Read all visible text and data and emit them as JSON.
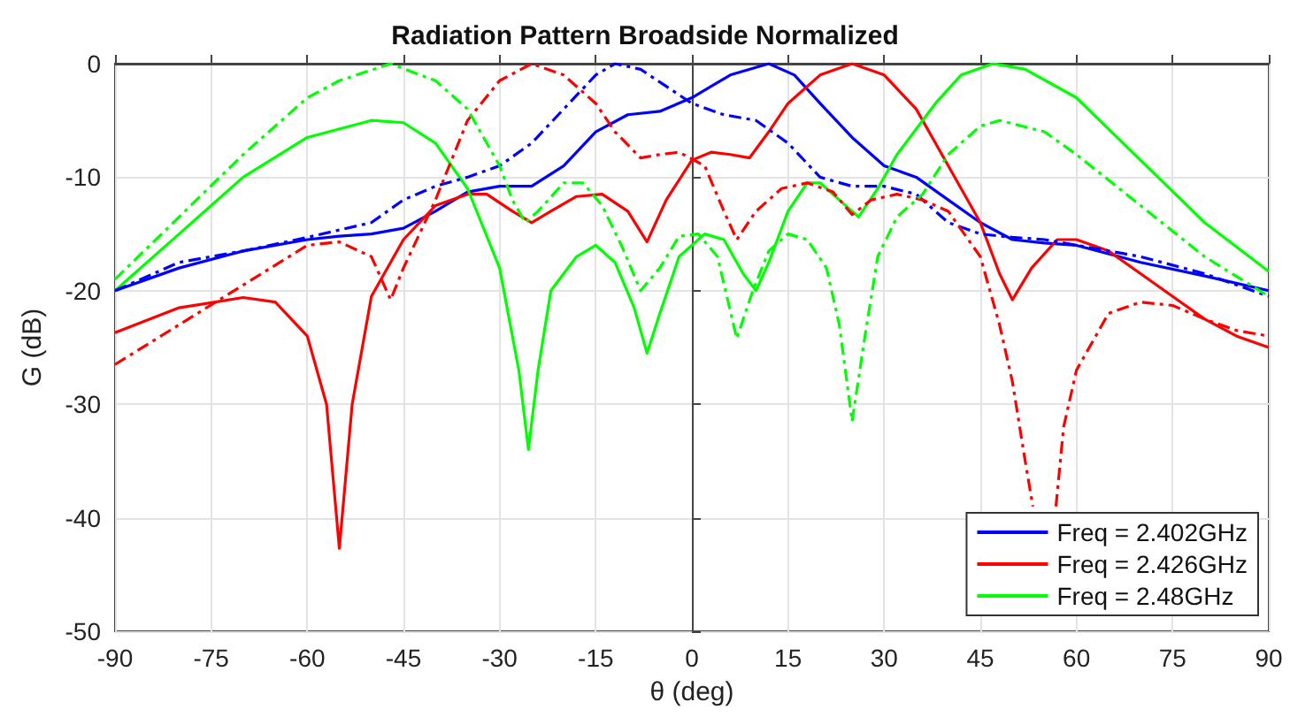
{
  "chart_data": {
    "type": "line",
    "title": "Radiation Pattern Broadside Normalized",
    "xlabel": "θ (deg)",
    "ylabel": "G (dB)",
    "xlim": [
      -90,
      90
    ],
    "xticks": [
      -90,
      -75,
      -60,
      -45,
      -30,
      -15,
      0,
      15,
      30,
      45,
      60,
      75,
      90
    ],
    "ylim": [
      -50,
      0
    ],
    "yticks": [
      -50,
      -40,
      -30,
      -20,
      -10,
      0
    ],
    "grid": true,
    "legend": "bottom right",
    "marker": "none",
    "series": [
      {
        "name": "Freq = 2.402GHz",
        "color": "#0000ff",
        "line_style": "solid",
        "x": [
          -90,
          -80,
          -70,
          -60,
          -55,
          -50,
          -45,
          -40,
          -35,
          -30,
          -25,
          -20,
          -15,
          -10,
          -5,
          0,
          3,
          6,
          12,
          16,
          20,
          25,
          30,
          35,
          40,
          45,
          50,
          55,
          60,
          70,
          80,
          90
        ],
        "values": [
          -20,
          -18,
          -16.5,
          -15.5,
          -15.2,
          -15,
          -14.5,
          -13,
          -11.3,
          -10.8,
          -10.8,
          -9,
          -6,
          -4.5,
          -4.2,
          -3,
          -2,
          -1,
          0,
          -1,
          -3.5,
          -6.5,
          -9,
          -10,
          -12,
          -14,
          -15.5,
          -15.8,
          -16,
          -17.5,
          -18.7,
          -20
        ]
      },
      {
        "name": "Freq = 2.426GHz",
        "color": "#ff0000",
        "line_style": "solid",
        "x": [
          -90,
          -80,
          -70,
          -65,
          -60,
          -57,
          -55,
          -53,
          -50,
          -45,
          -40,
          -35,
          -32,
          -28,
          -25,
          -22,
          -18,
          -14,
          -10,
          -7,
          -4,
          0,
          3,
          6,
          9,
          12,
          15,
          20,
          25,
          30,
          35,
          40,
          45,
          48,
          50,
          53,
          57,
          60,
          65,
          70,
          75,
          80,
          85,
          90
        ],
        "values": [
          -23.7,
          -21.5,
          -20.6,
          -21,
          -24,
          -30,
          -42.7,
          -30,
          -20.5,
          -15.5,
          -12.5,
          -11.5,
          -11.5,
          -13,
          -14,
          -13,
          -11.7,
          -11.5,
          -13,
          -15.7,
          -12,
          -8.5,
          -7.8,
          -8,
          -8.3,
          -6,
          -3.5,
          -1,
          0,
          -1,
          -4,
          -9,
          -14,
          -18.5,
          -20.8,
          -18,
          -15.5,
          -15.5,
          -16.5,
          -18.5,
          -20.5,
          -22.5,
          -24,
          -25
        ]
      },
      {
        "name": "Freq = 2.48GHz",
        "color": "#00ff00",
        "line_style": "solid",
        "x": [
          -90,
          -80,
          -70,
          -60,
          -50,
          -45,
          -40,
          -35,
          -30,
          -27,
          -25.5,
          -24,
          -22,
          -18,
          -15,
          -12,
          -9,
          -7,
          -5,
          -2,
          2,
          5,
          8,
          10,
          12,
          15,
          18,
          20,
          23,
          26,
          29,
          32,
          38,
          42,
          47,
          52,
          60,
          70,
          80,
          90
        ],
        "values": [
          -20,
          -15,
          -10,
          -6.5,
          -5,
          -5.2,
          -7,
          -11,
          -18,
          -27,
          -34,
          -27,
          -20,
          -17,
          -16,
          -17.5,
          -21.5,
          -25.5,
          -22,
          -17,
          -15,
          -15.5,
          -18.5,
          -20,
          -17.5,
          -13,
          -10.5,
          -10.5,
          -12,
          -13.5,
          -11,
          -8,
          -3.5,
          -1,
          0,
          -0.5,
          -3,
          -8.5,
          -14,
          -18.3
        ]
      },
      {
        "color": "#0000ff",
        "line_style": "dashdot",
        "x": [
          -90,
          -80,
          -70,
          -60,
          -50,
          -45,
          -40,
          -35,
          -30,
          -25,
          -20,
          -15,
          -12,
          -8,
          -4,
          0,
          5,
          10,
          15,
          20,
          25,
          30,
          35,
          40,
          45,
          50,
          55,
          60,
          70,
          80,
          90
        ],
        "values": [
          -20,
          -17.5,
          -16.5,
          -15.3,
          -14,
          -12,
          -10.8,
          -10,
          -9,
          -7,
          -4,
          -1,
          0,
          -0.5,
          -2,
          -3.5,
          -4.5,
          -5,
          -7,
          -10,
          -10.8,
          -10.8,
          -11.5,
          -14,
          -15,
          -15.3,
          -15.5,
          -16,
          -17,
          -18.5,
          -20.5
        ]
      },
      {
        "color": "#ff0000",
        "line_style": "dashdot",
        "x": [
          -90,
          -80,
          -70,
          -60,
          -55,
          -50,
          -47,
          -45,
          -40,
          -35,
          -30,
          -25,
          -20,
          -15,
          -12,
          -8,
          -5,
          -2,
          2,
          5,
          7,
          10,
          14,
          18,
          22,
          25,
          28,
          32,
          36,
          40,
          45,
          48,
          50,
          52,
          53.2,
          55,
          56.8,
          58,
          60,
          65,
          70,
          75,
          80,
          85,
          90
        ],
        "values": [
          -26.5,
          -23,
          -19.5,
          -16,
          -15.7,
          -17,
          -20.8,
          -18,
          -12,
          -5,
          -1.5,
          0,
          -1,
          -3.5,
          -6,
          -8.3,
          -8,
          -7.8,
          -9,
          -13,
          -15.5,
          -13,
          -11,
          -10.5,
          -11.3,
          -13.3,
          -12,
          -11.5,
          -12,
          -13,
          -17,
          -23,
          -28,
          -35,
          -39,
          null,
          -39,
          -32,
          -27,
          -22,
          -21,
          -21.3,
          -22.5,
          -23.5,
          -24
        ]
      },
      {
        "color": "#00ff00",
        "line_style": "dashdot",
        "x": [
          -90,
          -80,
          -70,
          -60,
          -55,
          -47,
          -40,
          -35,
          -30,
          -28,
          -26,
          -24,
          -20,
          -17,
          -14,
          -11,
          -8,
          -5,
          -2,
          1,
          4,
          7,
          9.5,
          12,
          15,
          18,
          21,
          23,
          25,
          27,
          29,
          32,
          36,
          40,
          45,
          48,
          55,
          60,
          70,
          80,
          90
        ],
        "values": [
          -19,
          -13.5,
          -8,
          -3,
          -1.5,
          0,
          -1.5,
          -4,
          -9,
          -12,
          -14,
          -13,
          -10.5,
          -10.5,
          -12.5,
          -16,
          -20,
          -18,
          -15.2,
          -15,
          -17,
          -24.2,
          -20,
          -16.5,
          -15,
          -15.5,
          -18,
          -23,
          -31.5,
          -24,
          -17,
          -13.5,
          -11.5,
          -8,
          -5.5,
          -5,
          -6,
          -8,
          -12.5,
          -17,
          -20.5
        ]
      }
    ]
  }
}
